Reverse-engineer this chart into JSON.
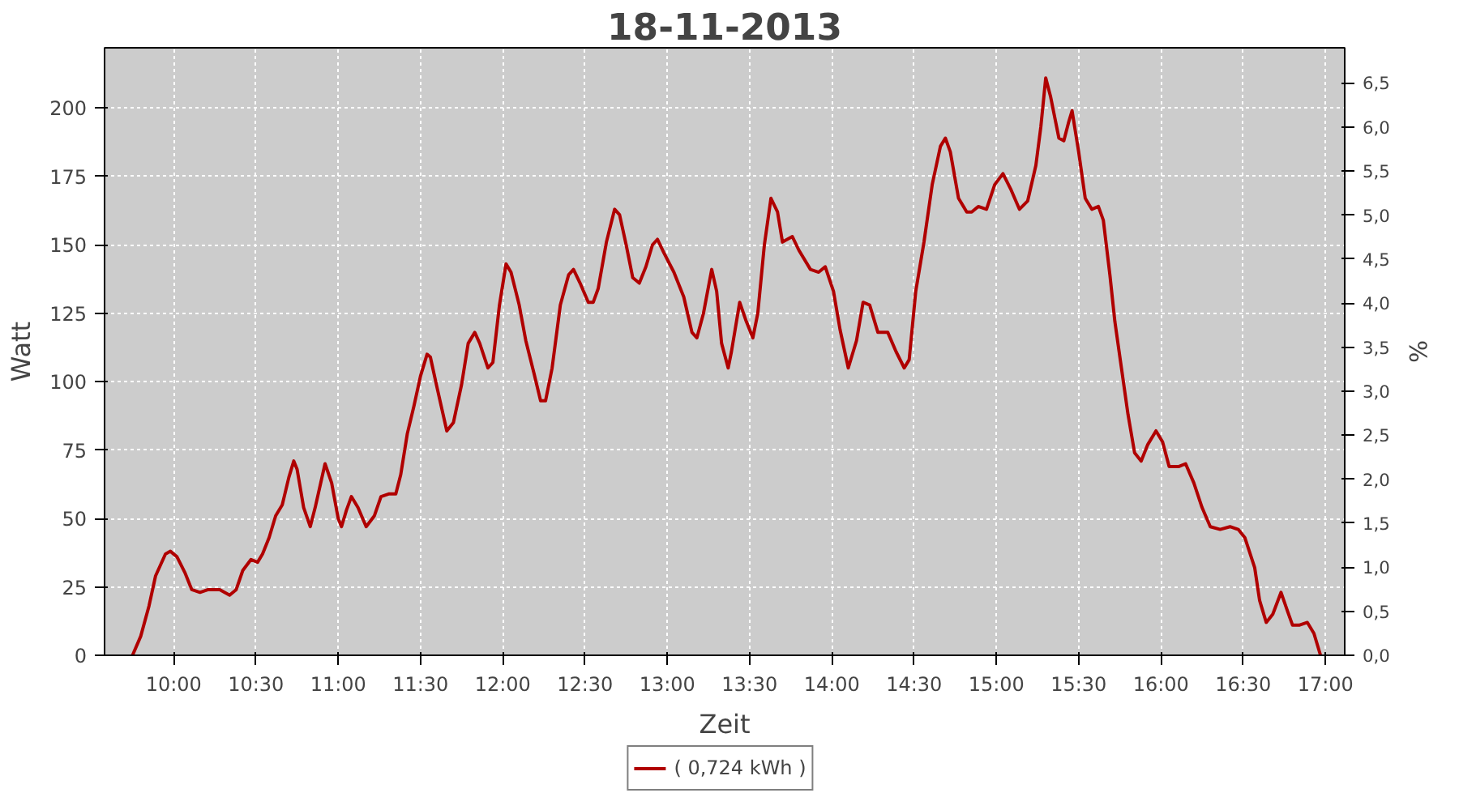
{
  "chart_data": {
    "type": "line",
    "title": "18-11-2013",
    "xlabel": "Zeit",
    "ylabel": "Watt",
    "y2label": "%",
    "xlim": [
      9.58,
      17.117
    ],
    "xticks": [
      {
        "value": 10,
        "label": "10:00"
      },
      {
        "value": 10.5,
        "label": "10:30"
      },
      {
        "value": 11,
        "label": "11:00"
      },
      {
        "value": 11.5,
        "label": "11:30"
      },
      {
        "value": 12,
        "label": "12:00"
      },
      {
        "value": 12.5,
        "label": "12:30"
      },
      {
        "value": 13,
        "label": "13:00"
      },
      {
        "value": 13.5,
        "label": "13:30"
      },
      {
        "value": 14,
        "label": "14:00"
      },
      {
        "value": 14.5,
        "label": "14:30"
      },
      {
        "value": 15,
        "label": "15:00"
      },
      {
        "value": 15.5,
        "label": "15:30"
      },
      {
        "value": 16,
        "label": "16:00"
      },
      {
        "value": 16.5,
        "label": "16:30"
      },
      {
        "value": 17,
        "label": "17:00"
      }
    ],
    "ylim": [
      0,
      222
    ],
    "yticks": [
      0,
      25,
      50,
      75,
      100,
      125,
      150,
      175,
      200
    ],
    "y2lim": [
      0,
      6.9
    ],
    "y2ticks": [
      {
        "value": 0,
        "label": "0,0"
      },
      {
        "value": 0.5,
        "label": "0,5"
      },
      {
        "value": 1,
        "label": "1,0"
      },
      {
        "value": 1.5,
        "label": "1,5"
      },
      {
        "value": 2,
        "label": "2,0"
      },
      {
        "value": 2.5,
        "label": "2,5"
      },
      {
        "value": 3,
        "label": "3,0"
      },
      {
        "value": 3.5,
        "label": "3,5"
      },
      {
        "value": 4,
        "label": "4,0"
      },
      {
        "value": 4.5,
        "label": "4,5"
      },
      {
        "value": 5,
        "label": "5,0"
      },
      {
        "value": 5.5,
        "label": "5,5"
      },
      {
        "value": 6,
        "label": "6,0"
      },
      {
        "value": 6.5,
        "label": "6,5"
      }
    ],
    "grid": true,
    "legend": "bottom",
    "series": [
      {
        "name": "( 0,724 kWh )",
        "color": "#b00000",
        "x": [
          9.75,
          9.8,
          9.85,
          9.89,
          9.95,
          9.98,
          10.02,
          10.07,
          10.11,
          10.16,
          10.21,
          10.28,
          10.34,
          10.38,
          10.42,
          10.47,
          10.51,
          10.54,
          10.58,
          10.62,
          10.66,
          10.7,
          10.73,
          10.75,
          10.79,
          10.83,
          10.86,
          10.92,
          10.96,
          11.0,
          11.02,
          11.05,
          11.08,
          11.12,
          11.17,
          11.22,
          11.26,
          11.31,
          11.35,
          11.38,
          11.42,
          11.46,
          11.5,
          11.54,
          11.56,
          11.6,
          11.66,
          11.7,
          11.75,
          11.79,
          11.83,
          11.86,
          11.91,
          11.94,
          11.98,
          12.02,
          12.05,
          12.1,
          12.14,
          12.19,
          12.23,
          12.26,
          12.3,
          12.35,
          12.4,
          12.43,
          12.47,
          12.52,
          12.55,
          12.58,
          12.63,
          12.68,
          12.71,
          12.75,
          12.79,
          12.83,
          12.87,
          12.91,
          12.94,
          12.98,
          13.04,
          13.1,
          13.15,
          13.18,
          13.22,
          13.27,
          13.3,
          13.33,
          13.37,
          13.39,
          13.44,
          13.48,
          13.52,
          13.55,
          13.59,
          13.63,
          13.67,
          13.7,
          13.76,
          13.8,
          13.87,
          13.92,
          13.96,
          14.01,
          14.05,
          14.1,
          14.15,
          14.19,
          14.23,
          14.28,
          14.34,
          14.39,
          14.44,
          14.47,
          14.51,
          14.56,
          14.61,
          14.66,
          14.69,
          14.72,
          14.77,
          14.82,
          14.85,
          14.89,
          14.94,
          14.99,
          15.04,
          15.09,
          15.14,
          15.19,
          15.24,
          15.27,
          15.3,
          15.33,
          15.38,
          15.41,
          15.44,
          15.46,
          15.5,
          15.54,
          15.58,
          15.62,
          15.65,
          15.69,
          15.72,
          15.76,
          15.8,
          15.84,
          15.88,
          15.92,
          15.97,
          16.01,
          16.05,
          16.11,
          16.15,
          16.2,
          16.25,
          16.3,
          16.36,
          16.42,
          16.47,
          16.51,
          16.57,
          16.6,
          16.64,
          16.68,
          16.73,
          16.77,
          16.8,
          16.84,
          16.89,
          16.93,
          16.97
        ],
        "values": [
          0,
          7,
          18,
          29,
          37,
          38,
          36,
          30,
          24,
          23,
          24,
          24,
          22,
          24,
          31,
          35,
          34,
          37,
          43,
          51,
          55,
          65,
          71,
          68,
          54,
          47,
          54,
          70,
          63,
          50,
          47,
          53,
          58,
          54,
          47,
          51,
          58,
          59,
          59,
          66,
          81,
          91,
          102,
          110,
          109,
          98,
          82,
          85,
          99,
          114,
          118,
          114,
          105,
          107,
          128,
          143,
          140,
          128,
          115,
          103,
          93,
          93,
          105,
          128,
          139,
          141,
          136,
          129,
          129,
          134,
          151,
          163,
          161,
          150,
          138,
          136,
          142,
          150,
          152,
          147,
          140,
          131,
          118,
          116,
          125,
          141,
          133,
          114,
          105,
          111,
          129,
          122,
          116,
          125,
          150,
          167,
          162,
          151,
          153,
          148,
          141,
          140,
          142,
          133,
          119,
          105,
          115,
          129,
          128,
          118,
          118,
          111,
          105,
          108,
          133,
          151,
          172,
          186,
          189,
          184,
          167,
          162,
          162,
          164,
          163,
          172,
          176,
          170,
          163,
          166,
          179,
          193,
          211,
          204,
          189,
          188,
          195,
          199,
          184,
          167,
          163,
          164,
          159,
          139,
          122,
          105,
          88,
          74,
          71,
          77,
          82,
          78,
          69,
          69,
          70,
          63,
          54,
          47,
          46,
          47,
          46,
          43,
          32,
          20,
          12,
          15,
          23,
          16,
          11,
          11,
          12,
          8,
          0
        ]
      }
    ]
  }
}
